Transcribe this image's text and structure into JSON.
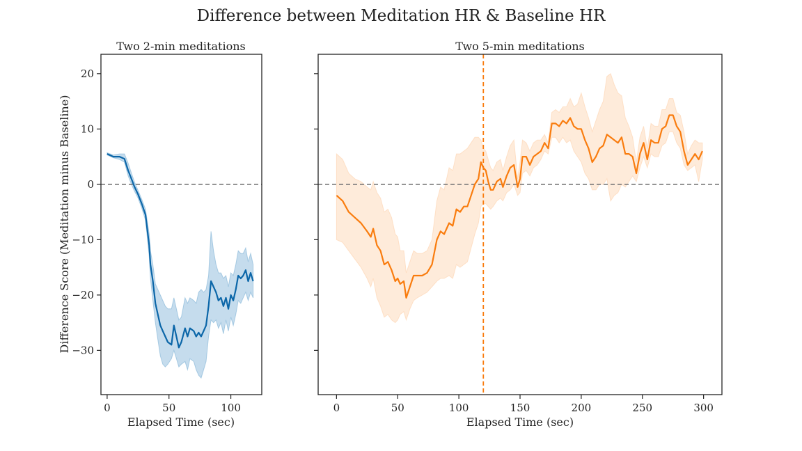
{
  "figure": {
    "title": "Difference between Meditation HR & Baseline HR"
  },
  "chart_data": [
    {
      "type": "line",
      "title": "Two 2-min meditations",
      "xlabel": "Elapsed Time (sec)",
      "ylabel": "Difference Score (Meditation minus Baseline)",
      "xlim": [
        -5,
        125
      ],
      "ylim": [
        -38,
        23.5
      ],
      "xticks": [
        0,
        50,
        100
      ],
      "yticks": [
        20,
        10,
        0,
        -10,
        -20,
        -30
      ],
      "color": "#0b66a8",
      "band_color": "#7fb2d6",
      "reference_lines": [
        {
          "orientation": "horizontal",
          "value": 0,
          "color": "#777777",
          "style": "dashed"
        }
      ],
      "series": [
        {
          "x": [
            0,
            5,
            10,
            14,
            17,
            20,
            22,
            25,
            28,
            31,
            34,
            35,
            37,
            39,
            41,
            43,
            45,
            47,
            49,
            52,
            54,
            56,
            58,
            60,
            63,
            65,
            67,
            70,
            72,
            74,
            76,
            78,
            80,
            82,
            84,
            86,
            88,
            90,
            92,
            94,
            96,
            98,
            100,
            102,
            104,
            106,
            108,
            110,
            112,
            114,
            116,
            118
          ],
          "y": [
            5.5,
            5.0,
            5.0,
            4.6,
            2.5,
            0.8,
            -0.4,
            -1.8,
            -3.5,
            -5.5,
            -11.0,
            -14.5,
            -17.5,
            -21.5,
            -23.5,
            -25.5,
            -26.5,
            -27.5,
            -28.5,
            -29.0,
            -25.5,
            -27.5,
            -29.5,
            -28.5,
            -26.0,
            -27.5,
            -26.0,
            -26.5,
            -27.5,
            -26.8,
            -27.5,
            -26.5,
            -25.5,
            -22.0,
            -17.5,
            -18.5,
            -19.5,
            -21.0,
            -20.5,
            -22.0,
            -20.5,
            -22.5,
            -20.0,
            -21.0,
            -19.0,
            -16.5,
            -17.0,
            -16.5,
            -15.5,
            -17.5,
            -16.0,
            -17.5
          ],
          "lower": [
            5.3,
            4.8,
            4.5,
            4.0,
            1.5,
            -0.2,
            -1.2,
            -2.5,
            -4.3,
            -6.5,
            -13.0,
            -17.0,
            -21.0,
            -25.0,
            -28.0,
            -31.0,
            -32.5,
            -33.0,
            -32.5,
            -31.5,
            -30.0,
            -31.5,
            -33.0,
            -32.5,
            -32.0,
            -33.5,
            -31.5,
            -32.0,
            -33.5,
            -34.5,
            -35.0,
            -33.5,
            -32.0,
            -27.5,
            -24.5,
            -25.0,
            -24.5,
            -26.0,
            -25.0,
            -27.0,
            -24.5,
            -26.5,
            -24.0,
            -25.5,
            -23.5,
            -21.0,
            -21.5,
            -20.5,
            -19.5,
            -21.0,
            -19.5,
            -20.5
          ],
          "upper": [
            5.7,
            5.3,
            5.5,
            5.5,
            3.8,
            1.8,
            0.5,
            -1.1,
            -2.7,
            -4.5,
            -9.0,
            -12.0,
            -14.5,
            -18.0,
            -19.0,
            -20.0,
            -21.0,
            -22.0,
            -22.5,
            -22.5,
            -20.5,
            -22.5,
            -24.5,
            -24.0,
            -20.5,
            -21.5,
            -20.5,
            -21.0,
            -21.5,
            -19.5,
            -19.0,
            -19.5,
            -19.0,
            -16.5,
            -8.5,
            -12.0,
            -14.5,
            -16.0,
            -16.0,
            -17.0,
            -16.5,
            -18.5,
            -16.0,
            -16.5,
            -14.5,
            -12.0,
            -12.5,
            -12.5,
            -11.5,
            -14.0,
            -12.5,
            -14.5
          ]
        }
      ]
    },
    {
      "type": "line",
      "title": "Two 5-min meditations",
      "xlabel": "Elapsed Time (sec)",
      "ylabel": "",
      "xlim": [
        -15,
        315
      ],
      "ylim": [
        -38,
        23.5
      ],
      "xticks": [
        0,
        50,
        100,
        150,
        200,
        250,
        300
      ],
      "color": "#f97c0e",
      "band_color": "#fdd2ad",
      "reference_lines": [
        {
          "orientation": "horizontal",
          "value": 0,
          "color": "#777777",
          "style": "dashed"
        },
        {
          "orientation": "vertical",
          "value": 120,
          "color": "#f97c0e",
          "style": "dashed"
        }
      ],
      "series": [
        {
          "x": [
            0,
            5,
            10,
            15,
            20,
            25,
            28,
            30,
            33,
            36,
            39,
            42,
            45,
            48,
            50,
            52,
            55,
            57,
            60,
            63,
            66,
            70,
            74,
            78,
            82,
            85,
            88,
            92,
            95,
            98,
            101,
            104,
            107,
            110,
            113,
            116,
            118,
            120,
            122,
            124,
            126,
            128,
            131,
            134,
            136,
            139,
            142,
            145,
            148,
            150,
            152,
            155,
            158,
            161,
            164,
            167,
            170,
            173,
            176,
            179,
            182,
            185,
            188,
            191,
            194,
            197,
            200,
            203,
            206,
            209,
            212,
            215,
            218,
            221,
            224,
            227,
            230,
            233,
            236,
            239,
            242,
            245,
            248,
            251,
            254,
            257,
            260,
            263,
            266,
            269,
            272,
            275,
            278,
            281,
            284,
            287,
            290,
            293,
            296,
            299
          ],
          "y": [
            -2.0,
            -3.0,
            -5.0,
            -6.0,
            -7.0,
            -8.5,
            -9.5,
            -8.0,
            -11.0,
            -12.0,
            -14.5,
            -14.0,
            -15.5,
            -17.5,
            -17.0,
            -18.0,
            -17.5,
            -20.5,
            -18.5,
            -16.5,
            -16.5,
            -16.5,
            -16.0,
            -14.5,
            -10.0,
            -8.5,
            -9.0,
            -7.0,
            -7.5,
            -4.5,
            -5.0,
            -4.0,
            -4.0,
            -2.0,
            0.0,
            1.0,
            4.0,
            3.0,
            2.5,
            0.5,
            -1.0,
            -1.0,
            0.5,
            1.0,
            -0.5,
            1.5,
            3.0,
            3.5,
            -0.5,
            1.0,
            5.0,
            5.0,
            3.5,
            5.0,
            5.5,
            6.0,
            7.5,
            6.5,
            11.0,
            11.0,
            10.5,
            11.5,
            11.0,
            12.0,
            10.5,
            10.0,
            10.0,
            8.0,
            6.5,
            4.0,
            5.0,
            6.5,
            7.0,
            9.0,
            8.5,
            8.0,
            7.5,
            8.5,
            5.5,
            5.5,
            5.0,
            2.0,
            5.5,
            7.5,
            4.5,
            8.0,
            7.5,
            7.5,
            10.0,
            10.5,
            12.5,
            12.5,
            10.5,
            9.5,
            6.0,
            3.5,
            4.5,
            5.5,
            4.5,
            6.0
          ],
          "lower": [
            -10.0,
            -10.5,
            -12.0,
            -13.5,
            -15.0,
            -17.0,
            -18.5,
            -17.0,
            -20.5,
            -22.0,
            -24.0,
            -23.5,
            -24.5,
            -25.0,
            -24.5,
            -23.5,
            -23.0,
            -24.5,
            -22.5,
            -21.0,
            -20.5,
            -20.0,
            -19.5,
            -18.5,
            -17.5,
            -17.0,
            -17.0,
            -16.5,
            -17.0,
            -14.5,
            -15.0,
            -14.5,
            -14.0,
            -11.5,
            -9.0,
            -7.0,
            -4.0,
            -3.5,
            -3.5,
            -4.0,
            -4.5,
            -4.0,
            -3.0,
            -2.5,
            -3.0,
            -1.5,
            -1.0,
            0.0,
            -2.0,
            -1.5,
            2.0,
            2.5,
            1.5,
            3.0,
            3.5,
            4.5,
            6.0,
            5.5,
            8.5,
            8.5,
            7.5,
            8.5,
            7.5,
            8.0,
            6.0,
            5.0,
            4.0,
            2.0,
            1.0,
            -1.0,
            -1.0,
            0.0,
            0.0,
            1.0,
            -3.0,
            -2.0,
            -1.5,
            0.0,
            -0.5,
            0.5,
            1.5,
            0.5,
            3.0,
            5.0,
            3.0,
            5.5,
            5.0,
            5.0,
            7.0,
            7.5,
            9.5,
            9.5,
            7.5,
            6.5,
            3.5,
            2.5,
            3.0,
            3.5,
            0.5,
            4.5
          ],
          "upper": [
            5.5,
            4.5,
            2.0,
            1.0,
            0.5,
            -0.5,
            -1.0,
            0.5,
            -1.5,
            -2.5,
            -5.0,
            -4.5,
            -6.0,
            -9.0,
            -9.5,
            -12.0,
            -12.0,
            -16.0,
            -14.0,
            -12.0,
            -12.5,
            -12.5,
            -12.0,
            -10.0,
            -3.0,
            -0.5,
            -1.0,
            3.0,
            2.5,
            5.5,
            5.5,
            6.0,
            6.5,
            7.5,
            8.5,
            8.5,
            8.0,
            6.5,
            6.0,
            4.5,
            3.0,
            2.5,
            4.0,
            4.5,
            2.5,
            5.0,
            7.0,
            8.0,
            1.0,
            4.0,
            8.0,
            7.5,
            6.0,
            7.5,
            8.0,
            8.0,
            9.0,
            7.5,
            13.0,
            13.5,
            13.0,
            14.0,
            14.0,
            15.5,
            14.0,
            14.5,
            16.5,
            14.0,
            12.0,
            9.5,
            11.5,
            13.5,
            15.0,
            19.5,
            20.0,
            18.0,
            16.5,
            16.0,
            12.0,
            10.5,
            8.5,
            4.0,
            8.5,
            10.5,
            6.5,
            11.0,
            10.5,
            10.5,
            13.5,
            13.5,
            15.5,
            15.5,
            13.0,
            12.5,
            9.5,
            5.5,
            7.0,
            8.0,
            7.5,
            7.5
          ]
        }
      ]
    }
  ]
}
